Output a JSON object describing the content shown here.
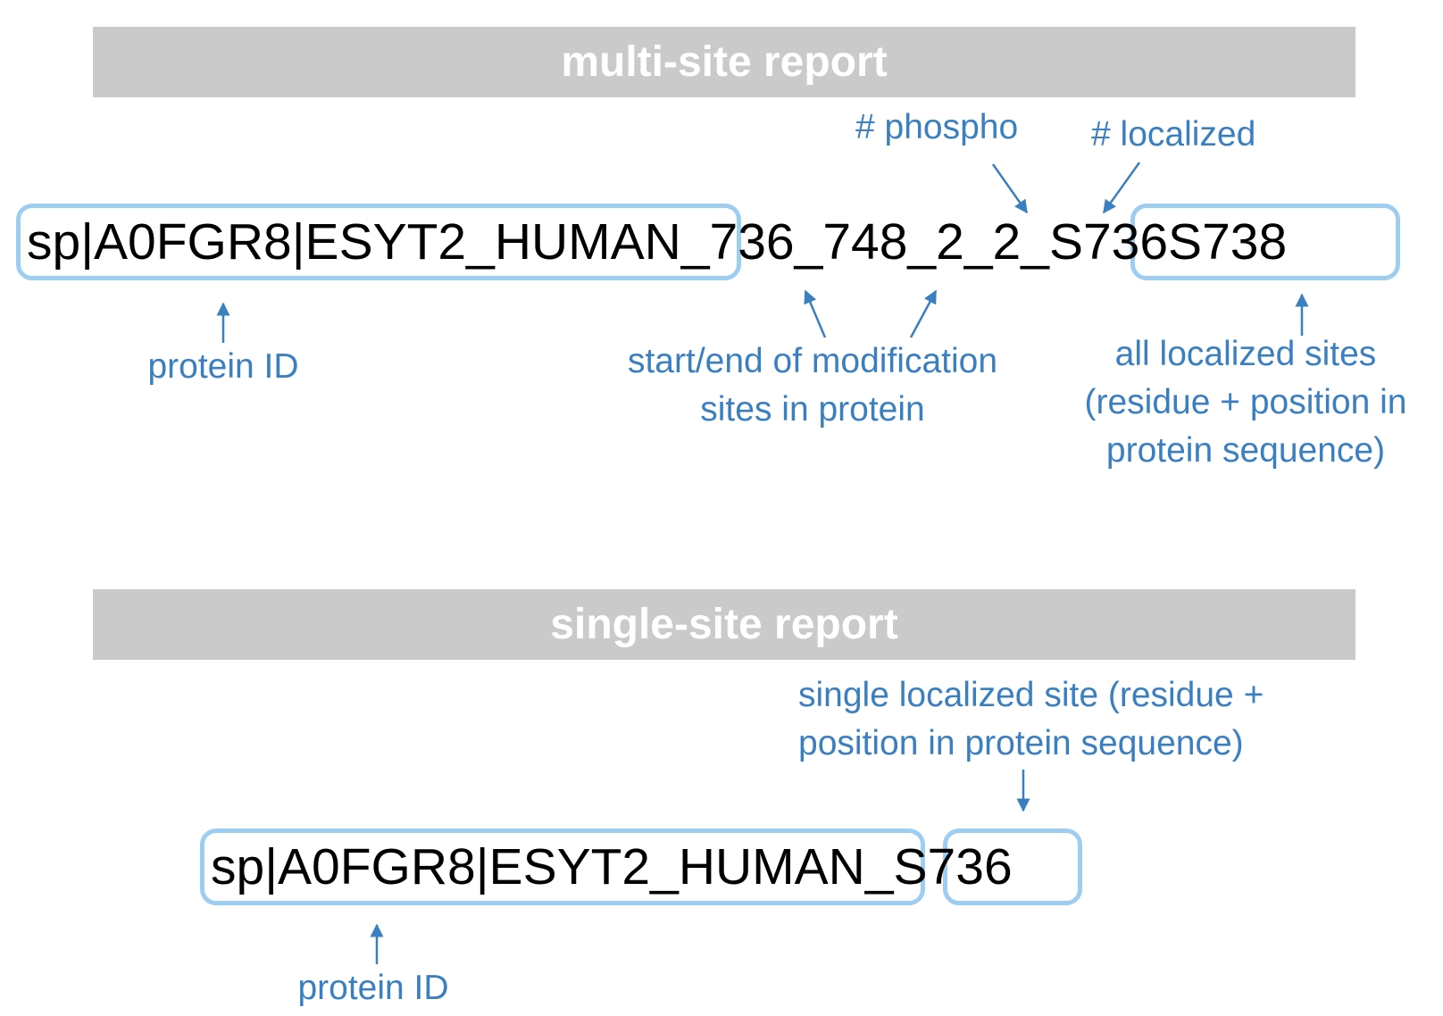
{
  "multi": {
    "title": "multi-site report",
    "id_seg1": "sp|A0FGR8|ESYT2_HUMAN",
    "id_seg2": "_736_748_2_2_",
    "id_seg3": "S736S738",
    "lbl_phospho": "# phospho",
    "lbl_localized": "# localized",
    "lbl_protein_id": "protein ID",
    "lbl_startend_1": "start/end of modification",
    "lbl_startend_2": "sites in protein",
    "lbl_allsites_1": "all localized sites",
    "lbl_allsites_2": "(residue + position in",
    "lbl_allsites_3": "protein sequence)"
  },
  "single": {
    "title": "single-site report",
    "id_seg1": "sp|A0FGR8|ESYT2_HUMAN",
    "id_seg2": "_",
    "id_seg3": "S736",
    "lbl_site_1": "single localized site (residue +",
    "lbl_site_2": "position in protein sequence)",
    "lbl_protein_id": "protein ID"
  },
  "colors": {
    "accent": "#3a7fc1",
    "box": "#9ecdf2",
    "banner": "#cacaca"
  }
}
